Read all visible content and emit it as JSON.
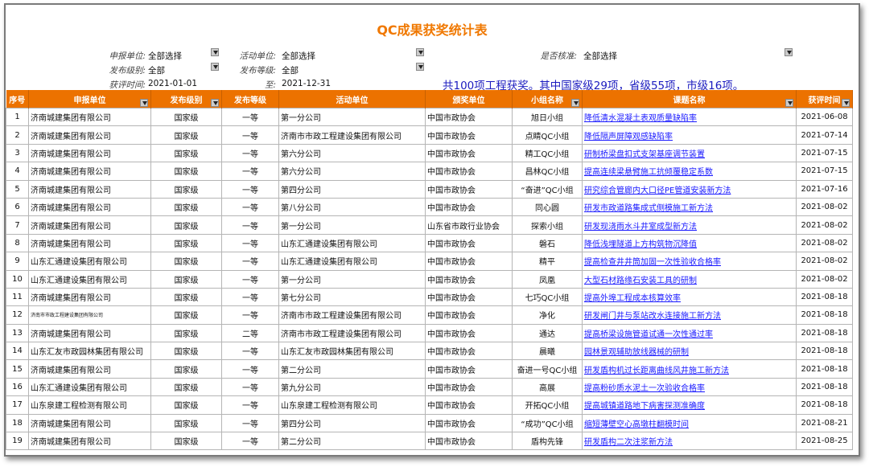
{
  "title": "QC成果获奖统计表",
  "filters": {
    "applicant_label": "申报单位:",
    "applicant_value": "全部选择",
    "activity_label": "活动单位:",
    "activity_value": "全部选择",
    "approved_label": "是否核准:",
    "approved_value": "全部选择",
    "level_label": "发布级别:",
    "level_value": "全部",
    "grade_label": "发布等级:",
    "grade_value": "全部",
    "date_label": "获评时间:",
    "date_from": "2021-01-01",
    "to_label": "至:",
    "date_to": "2021-12-31"
  },
  "summary": "共100项工程获奖。其中国家级29项，省级55项，市级16项。",
  "colors": {
    "accent": "#ec7200",
    "link": "#1a1aff",
    "summary": "#1b1bbf"
  },
  "columns": [
    "序号",
    "申报单位",
    "发布级别",
    "发布等级",
    "活动单位",
    "颁奖单位",
    "小组名称",
    "课题名称",
    "获评时间"
  ],
  "rows": [
    [
      "1",
      "济南城建集团有限公司",
      "国家级",
      "一等",
      "第一分公司",
      "中国市政协会",
      "旭日小组",
      "降低清水混凝土表观质量缺陷率",
      "2021-06-08"
    ],
    [
      "2",
      "济南城建集团有限公司",
      "国家级",
      "一等",
      "济南市市政工程建设集团有限公司",
      "中国市政协会",
      "点睛QC小组",
      "降低隔声屏障观感缺陷率",
      "2021-07-14"
    ],
    [
      "3",
      "济南城建集团有限公司",
      "国家级",
      "一等",
      "第六分公司",
      "中国市政协会",
      "精工QC小组",
      "研制桥梁盘扣式支架基座调节装置",
      "2021-07-15"
    ],
    [
      "4",
      "济南城建集团有限公司",
      "国家级",
      "一等",
      "第六分公司",
      "中国市政协会",
      "昌林QC小组",
      "提高连续梁悬臂施工抗倾覆稳定系数",
      "2021-07-15"
    ],
    [
      "5",
      "济南城建集团有限公司",
      "国家级",
      "一等",
      "第四分公司",
      "中国市政协会",
      "“奋进”QC小组",
      "研究综合管廊内大口径PE管道安装新方法",
      "2021-07-16"
    ],
    [
      "6",
      "济南城建集团有限公司",
      "国家级",
      "一等",
      "第八分公司",
      "中国市政协会",
      "同心圆",
      "研发市政道路集成式侧模施工新方法",
      "2021-08-02"
    ],
    [
      "7",
      "济南城建集团有限公司",
      "国家级",
      "一等",
      "第一分公司",
      "山东省市政行业协会",
      "探索小组",
      "研发现浇雨水斗井室成型新方法",
      "2021-08-02"
    ],
    [
      "8",
      "济南城建集团有限公司",
      "国家级",
      "一等",
      "山东汇通建设集团有限公司",
      "中国市政协会",
      "磐石",
      "降低浅埋隧道上方构筑物沉降值",
      "2021-08-02"
    ],
    [
      "9",
      "山东汇通建设集团有限公司",
      "国家级",
      "一等",
      "山东汇通建设集团有限公司",
      "中国市政协会",
      "精平",
      "提高检查井井筒加固一次性验收合格率",
      "2021-08-02"
    ],
    [
      "10",
      "山东汇通建设集团有限公司",
      "国家级",
      "一等",
      "第一分公司",
      "中国市政协会",
      "凤凰",
      "大型石材路缘石安装工具的研制",
      "2021-08-02"
    ],
    [
      "11",
      "济南城建集团有限公司",
      "国家级",
      "一等",
      "第七分公司",
      "中国市政协会",
      "七巧QC小组",
      "提高外埠工程成本核算效率",
      "2021-08-18"
    ],
    [
      "12",
      "济南市市政工程建设集团有限公司",
      "国家级",
      "一等",
      "济南市市政工程建设集团有限公司",
      "中国市政协会",
      "净化",
      "研发闸门井与泵站改水连接施工新方法",
      "2021-08-18"
    ],
    [
      "13",
      "济南城建集团有限公司",
      "国家级",
      "二等",
      "济南市市政工程建设集团有限公司",
      "中国市政协会",
      "通达",
      "提高桥梁设施管道试通一次性通过率",
      "2021-08-18"
    ],
    [
      "14",
      "山东汇友市政园林集团有限公司",
      "国家级",
      "一等",
      "山东汇友市政园林集团有限公司",
      "中国市政协会",
      "晨曦",
      "园林景观辅助放线器械的研制",
      "2021-08-18"
    ],
    [
      "15",
      "济南城建集团有限公司",
      "国家级",
      "一等",
      "第二分公司",
      "中国市政协会",
      "奋进一号QC小组",
      "研发盾构机过长距离曲线风井施工新方法",
      "2021-08-18"
    ],
    [
      "16",
      "山东汇通建设集团有限公司",
      "国家级",
      "一等",
      "第九分公司",
      "中国市政协会",
      "高展",
      "提高粉砂质水泥土一次验收合格率",
      "2021-08-18"
    ],
    [
      "17",
      "山东泉建工程检测有限公司",
      "国家级",
      "一等",
      "山东泉建工程检测有限公司",
      "中国市政协会",
      "开拓QC小组",
      "提高城镇道路地下病害探测准确度",
      "2021-08-18"
    ],
    [
      "18",
      "济南城建集团有限公司",
      "国家级",
      "一等",
      "第四分公司",
      "中国市政协会",
      "“成功”QC小组",
      "缩短薄壁空心高墩柱翻模时间",
      "2021-08-21"
    ],
    [
      "19",
      "济南城建集团有限公司",
      "国家级",
      "一等",
      "第二分公司",
      "中国市政协会",
      "盾构先锋",
      "研发盾构二次注浆新方法",
      "2021-08-25"
    ]
  ]
}
